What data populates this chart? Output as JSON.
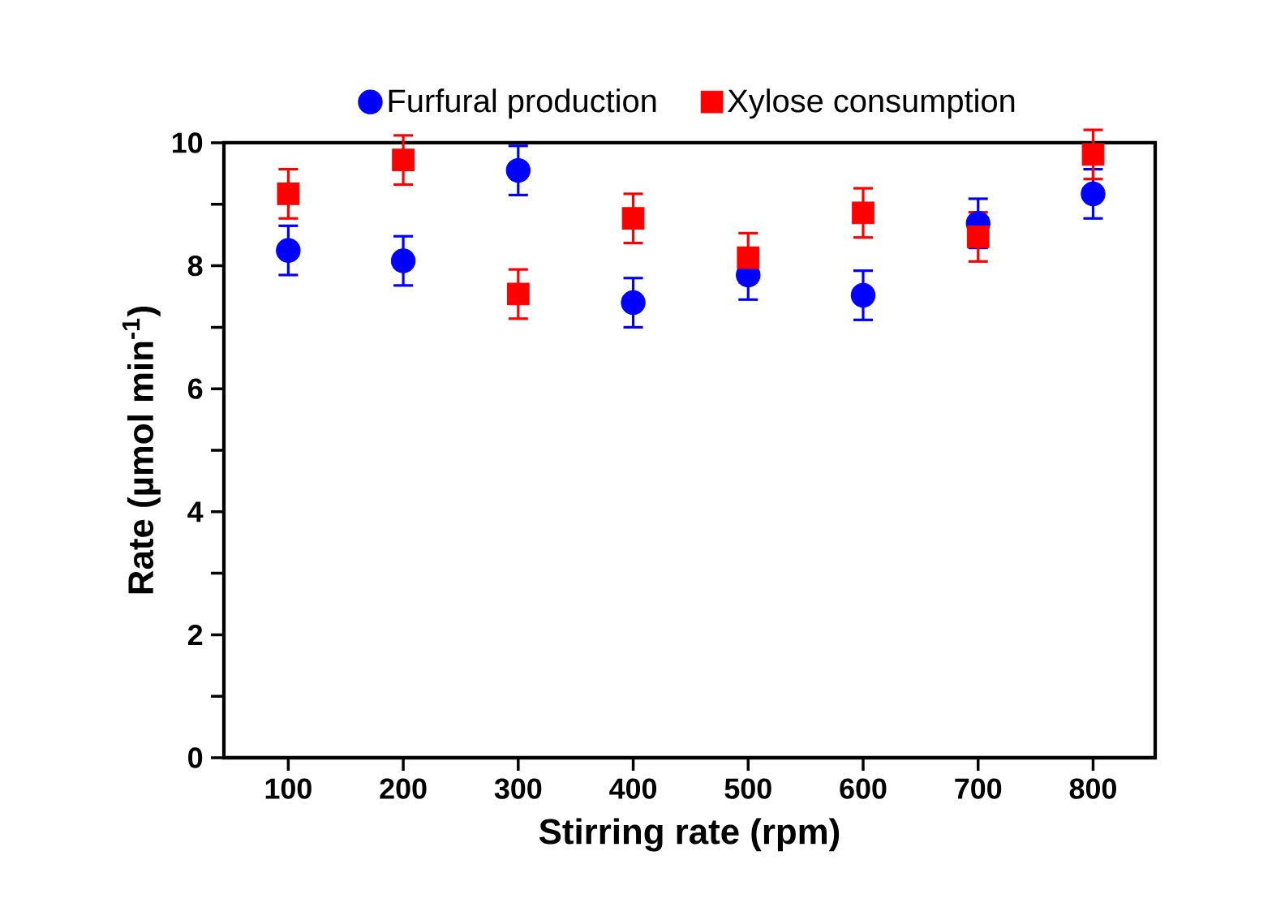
{
  "chart_data": {
    "type": "scatter",
    "xlabel": "Stirring rate (rpm)",
    "ylabel": "Rate (µmol min$^{-1}$)",
    "categories": [
      "100",
      "200",
      "300",
      "400",
      "500",
      "600",
      "700",
      "800"
    ],
    "ylim": [
      0,
      10
    ],
    "yticks": [
      0,
      {
        "value": 1,
        "label": null
      },
      2,
      {
        "value": 3,
        "label": null
      },
      4,
      {
        "value": 5,
        "label": null
      },
      6,
      {
        "value": 7,
        "label": null
      },
      8,
      {
        "value": 9,
        "label": null
      },
      10
    ],
    "legend": "top",
    "grid": false,
    "series": [
      {
        "name": "Furfural production",
        "color": "#0000ff",
        "marker": "circle",
        "values": [
          8.25,
          8.08,
          9.55,
          7.4,
          7.85,
          7.52,
          8.69,
          9.17
        ],
        "errors": [
          0.4,
          0.4,
          0.4,
          0.4,
          0.4,
          0.4,
          0.4,
          0.4
        ]
      },
      {
        "name": "Xylose consumption",
        "color": "#ff0000",
        "marker": "square",
        "values": [
          9.17,
          9.72,
          7.54,
          8.77,
          8.13,
          8.86,
          8.47,
          9.81
        ],
        "errors": [
          0.4,
          0.4,
          0.4,
          0.4,
          0.4,
          0.4,
          0.4,
          0.4
        ]
      }
    ]
  }
}
